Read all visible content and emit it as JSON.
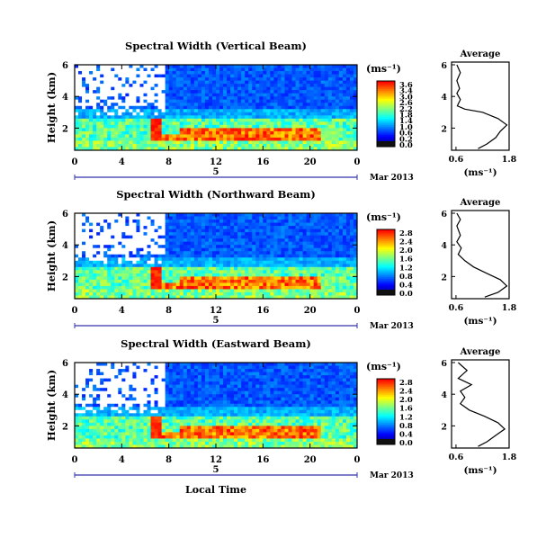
{
  "figure": {
    "date_label": "Mar 2013",
    "day_label": "5",
    "common_xlabel": "Local Time"
  },
  "chart_data": [
    {
      "type": "heatmap",
      "title": "Spectral Width (Vertical Beam)",
      "ylabel": "Height (km)",
      "xlabel": "",
      "x_ticks": [
        "0",
        "4",
        "8",
        "12",
        "16",
        "20",
        "0"
      ],
      "y_ticks": [
        "6",
        "4",
        "2"
      ],
      "xlim": [
        0,
        24
      ],
      "ylim": [
        0.6,
        6.0
      ],
      "colorbar": {
        "unit": "(ms⁻¹)",
        "ticks": [
          "3.6",
          "3.4",
          "3.0",
          "2.6",
          "2.2",
          "1.8",
          "1.4",
          "1.0",
          "0.6",
          "0.2",
          "0.0"
        ],
        "range": [
          0.0,
          3.6
        ]
      },
      "average_profile": {
        "title": "Average",
        "xlabel": "(ms⁻¹)",
        "x_ticks": [
          "0.6",
          "1.8"
        ],
        "y_ticks": [
          "6",
          "4",
          "2"
        ],
        "xlim": [
          0.5,
          1.8
        ],
        "ylim": [
          0.6,
          6.0
        ],
        "points": [
          [
            0.62,
            6.0
          ],
          [
            0.7,
            5.5
          ],
          [
            0.62,
            5.0
          ],
          [
            0.68,
            4.5
          ],
          [
            0.62,
            4.2
          ],
          [
            0.7,
            3.8
          ],
          [
            0.63,
            3.4
          ],
          [
            0.8,
            3.2
          ],
          [
            1.2,
            3.0
          ],
          [
            1.55,
            2.6
          ],
          [
            1.75,
            2.2
          ],
          [
            1.6,
            1.8
          ],
          [
            1.5,
            1.4
          ],
          [
            1.3,
            1.0
          ],
          [
            1.1,
            0.7
          ]
        ]
      }
    },
    {
      "type": "heatmap",
      "title": "Spectral Width (Northward Beam)",
      "ylabel": "Height (km)",
      "xlabel": "",
      "x_ticks": [
        "0",
        "4",
        "8",
        "12",
        "16",
        "20",
        "0"
      ],
      "y_ticks": [
        "6",
        "4",
        "2"
      ],
      "xlim": [
        0,
        24
      ],
      "ylim": [
        0.6,
        6.0
      ],
      "colorbar": {
        "unit": "(ms⁻¹)",
        "ticks": [
          "2.8",
          "2.4",
          "2.0",
          "1.6",
          "1.2",
          "0.8",
          "0.4",
          "0.0"
        ],
        "range": [
          0.0,
          2.8
        ]
      },
      "average_profile": {
        "title": "Average",
        "xlabel": "(ms⁻¹)",
        "x_ticks": [
          "0.6",
          "1.8"
        ],
        "y_ticks": [
          "6",
          "4",
          "2"
        ],
        "xlim": [
          0.5,
          1.8
        ],
        "ylim": [
          0.6,
          6.0
        ],
        "points": [
          [
            0.62,
            6.0
          ],
          [
            0.7,
            5.6
          ],
          [
            0.62,
            5.2
          ],
          [
            0.7,
            4.6
          ],
          [
            0.62,
            4.2
          ],
          [
            0.72,
            3.8
          ],
          [
            0.65,
            3.4
          ],
          [
            0.8,
            3.0
          ],
          [
            1.0,
            2.6
          ],
          [
            1.3,
            2.2
          ],
          [
            1.6,
            1.8
          ],
          [
            1.75,
            1.4
          ],
          [
            1.55,
            1.0
          ],
          [
            1.25,
            0.7
          ]
        ]
      }
    },
    {
      "type": "heatmap",
      "title": "Spectral Width (Eastward Beam)",
      "ylabel": "Height (km)",
      "xlabel": "",
      "x_ticks": [
        "0",
        "4",
        "8",
        "12",
        "16",
        "20",
        "0"
      ],
      "y_ticks": [
        "6",
        "4",
        "2"
      ],
      "xlim": [
        0,
        24
      ],
      "ylim": [
        0.6,
        6.0
      ],
      "colorbar": {
        "unit": "(ms⁻¹)",
        "ticks": [
          "2.8",
          "2.4",
          "2.0",
          "1.6",
          "1.2",
          "0.8",
          "0.4",
          "0.0"
        ],
        "range": [
          0.0,
          2.8
        ]
      },
      "average_profile": {
        "title": "Average",
        "xlabel": "(ms⁻¹)",
        "x_ticks": [
          "0.6",
          "1.8"
        ],
        "y_ticks": [
          "6",
          "4",
          "2"
        ],
        "xlim": [
          0.5,
          1.8
        ],
        "ylim": [
          0.6,
          6.0
        ],
        "points": [
          [
            0.65,
            6.0
          ],
          [
            0.85,
            5.5
          ],
          [
            0.65,
            5.0
          ],
          [
            0.95,
            4.6
          ],
          [
            0.7,
            4.2
          ],
          [
            0.8,
            3.8
          ],
          [
            0.7,
            3.4
          ],
          [
            0.9,
            3.0
          ],
          [
            1.25,
            2.6
          ],
          [
            1.55,
            2.2
          ],
          [
            1.7,
            1.8
          ],
          [
            1.5,
            1.4
          ],
          [
            1.3,
            1.0
          ],
          [
            1.1,
            0.7
          ]
        ]
      }
    }
  ],
  "colors": {
    "jet": [
      "#00007f",
      "#0000ff",
      "#0080ff",
      "#00ffff",
      "#80ff80",
      "#ffff00",
      "#ff8000",
      "#ff0000"
    ],
    "axis": "#000000",
    "date_bar": "#3333aa"
  }
}
